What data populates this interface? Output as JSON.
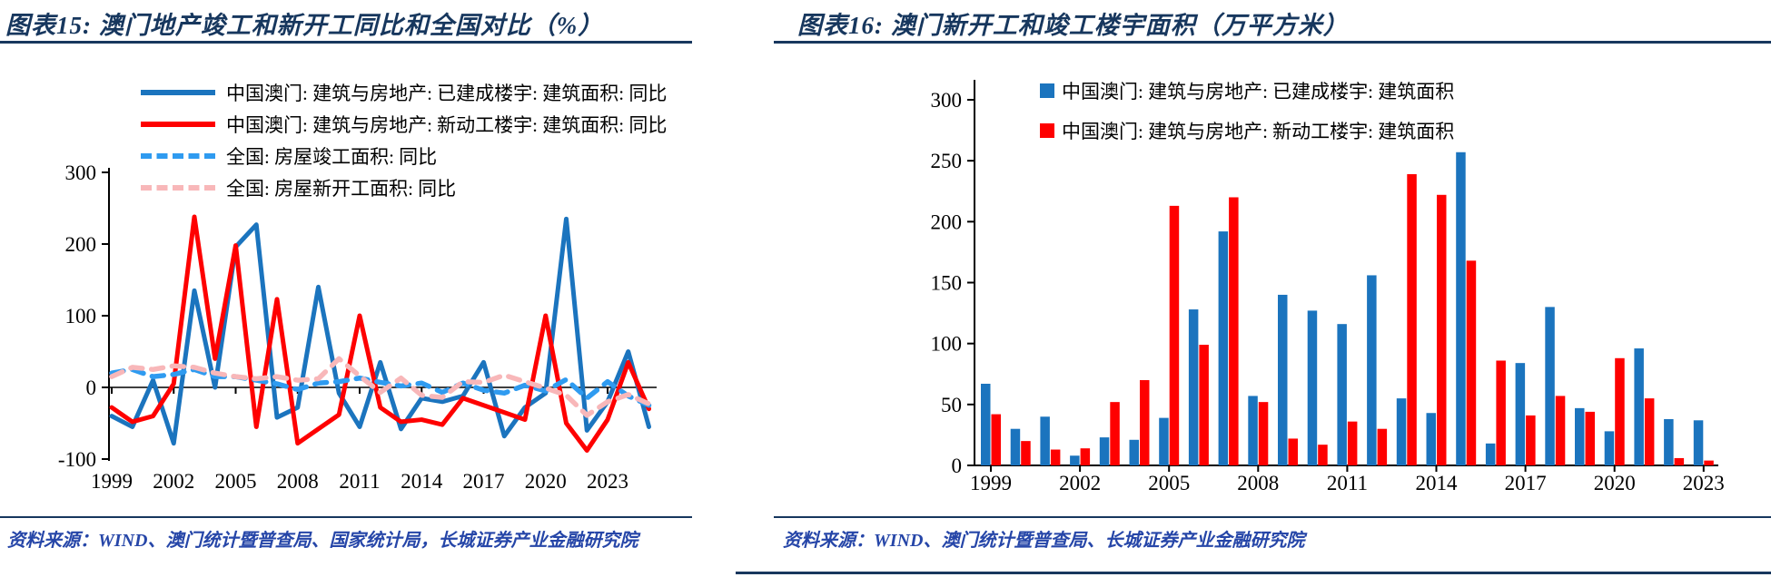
{
  "page": {
    "background": "#ffffff"
  },
  "colors": {
    "title_navy": "#17375E",
    "source_blue": "#2646A8",
    "macau_completed_blue": "#1B74BE",
    "macau_newstart_red": "#FE0000",
    "national_completed_blue": "#2F9BF0",
    "national_newstart_pink": "#F8B7B9",
    "axis_black": "#000000"
  },
  "figure15": {
    "title": "图表15:  澳门地产竣工和新开工同比和全国对比（%）",
    "legend": [
      {
        "label": "中国澳门: 建筑与房地产: 已建成楼宇: 建筑面积: 同比",
        "style": "solid",
        "color": "#1B74BE"
      },
      {
        "label": "中国澳门: 建筑与房地产: 新动工楼宇: 建筑面积: 同比",
        "style": "solid",
        "color": "#FE0000"
      },
      {
        "label": "全国: 房屋竣工面积: 同比",
        "style": "dashed",
        "color": "#2F9BF0"
      },
      {
        "label": "全国: 房屋新开工面积: 同比",
        "style": "dashed",
        "color": "#F8B7B9"
      }
    ],
    "source": "资料来源：WIND、澳门统计暨普查局、国家统计局，长城证券产业金融研究院"
  },
  "figure16": {
    "title": "图表16:  澳门新开工和竣工楼宇面积（万平方米）",
    "legend": [
      {
        "label": "中国澳门: 建筑与房地产: 已建成楼宇: 建筑面积",
        "color": "#1B74BE"
      },
      {
        "label": "中国澳门: 建筑与房地产: 新动工楼宇: 建筑面积",
        "color": "#FE0000"
      }
    ],
    "source": "资料来源：WIND、澳门统计暨普查局、长城证券产业金融研究院"
  },
  "chart_data": [
    {
      "type": "line",
      "title": "澳门地产竣工和新开工同比和全国对比（%）",
      "x": [
        1999,
        2000,
        2001,
        2002,
        2003,
        2004,
        2005,
        2006,
        2007,
        2008,
        2009,
        2010,
        2011,
        2012,
        2013,
        2014,
        2015,
        2016,
        2017,
        2018,
        2019,
        2020,
        2021,
        2022,
        2023,
        2024,
        2025
      ],
      "series": [
        {
          "name": "中国澳门: 建筑与房地产: 已建成楼宇: 建筑面积: 同比",
          "color": "#1B74BE",
          "dash": false,
          "values": [
            -40,
            -55,
            10,
            -78,
            135,
            0,
            196,
            227,
            -42,
            -28,
            140,
            -8,
            -55,
            35,
            -58,
            -15,
            -20,
            -12,
            35,
            -68,
            -28,
            -8,
            235,
            -60,
            -20,
            50,
            -55
          ]
        },
        {
          "name": "中国澳门: 建筑与房地产: 新动工楼宇: 建筑面积: 同比",
          "color": "#FE0000",
          "dash": false,
          "values": [
            -28,
            -48,
            -40,
            5,
            238,
            40,
            198,
            -55,
            123,
            -78,
            -58,
            -38,
            100,
            -28,
            -48,
            -45,
            -52,
            -15,
            -25,
            -35,
            -45,
            100,
            -50,
            -88,
            -45,
            35,
            -30
          ]
        },
        {
          "name": "全国: 房屋竣工面积: 同比",
          "color": "#2F9BF0",
          "dash": true,
          "values": [
            20,
            25,
            15,
            18,
            25,
            15,
            15,
            10,
            5,
            -3,
            6,
            8,
            13,
            7,
            2,
            6,
            -7,
            6,
            -4,
            -8,
            3,
            -5,
            11,
            -15,
            8,
            -12,
            -25
          ]
        },
        {
          "name": "全国: 房屋新开工面积: 同比",
          "color": "#F8B7B9",
          "dash": true,
          "values": [
            15,
            28,
            25,
            30,
            28,
            20,
            15,
            12,
            15,
            10,
            12,
            40,
            16,
            -7,
            13,
            -11,
            -14,
            8,
            7,
            17,
            8,
            -1,
            -11,
            -39,
            -20,
            -10,
            -23
          ]
        }
      ],
      "ylim": [
        -100,
        300
      ],
      "y_ticks": [
        300,
        200,
        100,
        0,
        -100
      ],
      "x_tick_years": [
        1999,
        2002,
        2005,
        2008,
        2011,
        2014,
        2017,
        2020,
        2023
      ],
      "grid": false,
      "legend_position": "top-left"
    },
    {
      "type": "bar",
      "title": "澳门新开工和竣工楼宇面积（万平方米）",
      "categories": [
        1999,
        2000,
        2001,
        2002,
        2003,
        2004,
        2005,
        2006,
        2007,
        2008,
        2009,
        2010,
        2011,
        2012,
        2013,
        2014,
        2015,
        2016,
        2017,
        2018,
        2019,
        2020,
        2021,
        2022,
        2023
      ],
      "series": [
        {
          "name": "中国澳门: 建筑与房地产: 已建成楼宇: 建筑面积",
          "color": "#1B74BE",
          "values": [
            67,
            30,
            40,
            8,
            23,
            21,
            39,
            128,
            192,
            57,
            140,
            127,
            116,
            156,
            55,
            43,
            257,
            18,
            84,
            130,
            47,
            28,
            96,
            38,
            37
          ]
        },
        {
          "name": "中国澳门: 建筑与房地产: 新动工楼宇: 建筑面积",
          "color": "#FE0000",
          "values": [
            42,
            20,
            13,
            14,
            52,
            70,
            213,
            99,
            220,
            52,
            22,
            17,
            36,
            30,
            239,
            222,
            168,
            86,
            41,
            57,
            44,
            88,
            55,
            6,
            4
          ]
        }
      ],
      "ylim": [
        0,
        300
      ],
      "y_ticks": [
        0,
        50,
        100,
        150,
        200,
        250,
        300
      ],
      "x_tick_years": [
        1999,
        2002,
        2005,
        2008,
        2011,
        2014,
        2017,
        2020,
        2023
      ],
      "grid": false,
      "legend_position": "top-right"
    }
  ]
}
